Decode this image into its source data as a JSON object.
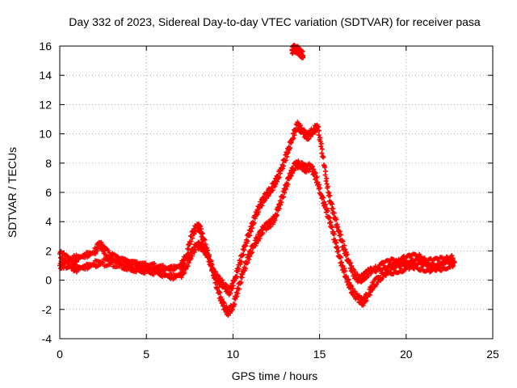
{
  "chart_data": {
    "type": "scatter",
    "title": "Day 332 of 2023, Sidereal Day-to-day VTEC variation (SDTVAR) for receiver pasa",
    "xlabel": "GPS time / hours",
    "ylabel": "SDTVAR / TECUs",
    "xlim": [
      0,
      25
    ],
    "ylim": [
      -4,
      16
    ],
    "xticks": [
      0,
      5,
      10,
      15,
      20,
      25
    ],
    "yticks": [
      -4,
      -2,
      0,
      2,
      4,
      6,
      8,
      10,
      12,
      14,
      16
    ],
    "grid": true,
    "marker": "+",
    "color": "#ff0000",
    "series": [
      {
        "name": "track-upper",
        "x": [
          0.0,
          0.3,
          0.7,
          1.0,
          1.5,
          2.0,
          2.3,
          2.6,
          3.0,
          3.5,
          4.0,
          4.5,
          5.0,
          5.5,
          6.0,
          6.5,
          7.0,
          7.3,
          7.6,
          7.9,
          8.1,
          8.3,
          8.6,
          8.9,
          9.2,
          9.5,
          9.8,
          10.1,
          10.4,
          10.7,
          11.0,
          11.3,
          11.6,
          11.9,
          12.2,
          12.5,
          12.8,
          13.1,
          13.4,
          13.7,
          14.0,
          14.3,
          14.6,
          14.9,
          15.2,
          15.5,
          15.8,
          16.1,
          16.4,
          16.7,
          17.0,
          17.3,
          17.6,
          17.9,
          18.3,
          18.7,
          19.1,
          19.5,
          19.9,
          20.3,
          20.7,
          21.1,
          21.5,
          21.9,
          22.3,
          22.7
        ],
        "y": [
          1.8,
          1.5,
          1.4,
          1.5,
          1.7,
          1.9,
          2.5,
          2.0,
          1.6,
          1.3,
          1.1,
          1.0,
          0.9,
          0.9,
          0.8,
          0.8,
          1.0,
          1.6,
          3.0,
          3.7,
          3.5,
          2.8,
          1.6,
          0.5,
          0.0,
          -0.4,
          -0.8,
          0.0,
          1.2,
          2.4,
          3.4,
          4.4,
          5.2,
          5.8,
          6.2,
          6.8,
          7.6,
          8.6,
          9.6,
          10.6,
          10.2,
          9.8,
          10.2,
          10.5,
          8.4,
          6.0,
          4.6,
          3.4,
          2.2,
          1.2,
          0.4,
          0.0,
          0.3,
          0.6,
          0.8,
          1.0,
          1.2,
          1.3,
          1.4,
          1.5,
          1.6,
          1.3,
          1.2,
          1.3,
          1.4,
          1.5
        ]
      },
      {
        "name": "track-lower",
        "x": [
          0.0,
          0.3,
          0.7,
          1.0,
          1.5,
          2.0,
          2.5,
          3.0,
          3.5,
          4.0,
          4.5,
          5.0,
          5.5,
          6.0,
          6.5,
          7.0,
          7.3,
          7.6,
          7.9,
          8.2,
          8.5,
          8.8,
          9.1,
          9.4,
          9.7,
          10.0,
          10.3,
          10.6,
          10.9,
          11.2,
          11.5,
          11.8,
          12.1,
          12.4,
          12.7,
          13.0,
          13.3,
          13.6,
          13.9,
          14.2,
          14.5,
          14.8,
          15.1,
          15.4,
          15.7,
          16.0,
          16.3,
          16.6,
          16.9,
          17.2,
          17.5,
          17.8,
          18.1,
          18.5,
          18.9,
          19.3,
          19.7,
          20.1,
          20.5,
          20.9,
          21.3,
          21.7,
          22.1,
          22.5,
          22.8
        ],
        "y": [
          1.0,
          1.1,
          0.9,
          0.8,
          0.9,
          1.1,
          1.2,
          1.2,
          1.1,
          0.9,
          0.8,
          0.7,
          0.6,
          0.4,
          0.2,
          0.4,
          0.9,
          1.8,
          2.4,
          2.3,
          1.8,
          0.8,
          -0.6,
          -1.6,
          -2.2,
          -1.8,
          -0.6,
          0.6,
          1.6,
          2.4,
          3.0,
          3.6,
          3.8,
          4.2,
          5.2,
          6.2,
          7.2,
          7.9,
          7.9,
          7.6,
          7.8,
          7.0,
          5.8,
          4.8,
          3.6,
          2.2,
          1.0,
          0.0,
          -0.8,
          -1.2,
          -1.5,
          -1.0,
          -0.3,
          0.2,
          0.5,
          0.7,
          0.8,
          0.9,
          1.0,
          0.9,
          0.8,
          0.8,
          0.9,
          1.1,
          1.2
        ]
      },
      {
        "name": "outlier-cluster",
        "x": [
          13.4,
          13.55,
          13.7,
          13.85,
          13.95,
          14.05
        ],
        "y": [
          15.7,
          15.85,
          15.75,
          15.6,
          15.45,
          15.35
        ]
      }
    ]
  }
}
